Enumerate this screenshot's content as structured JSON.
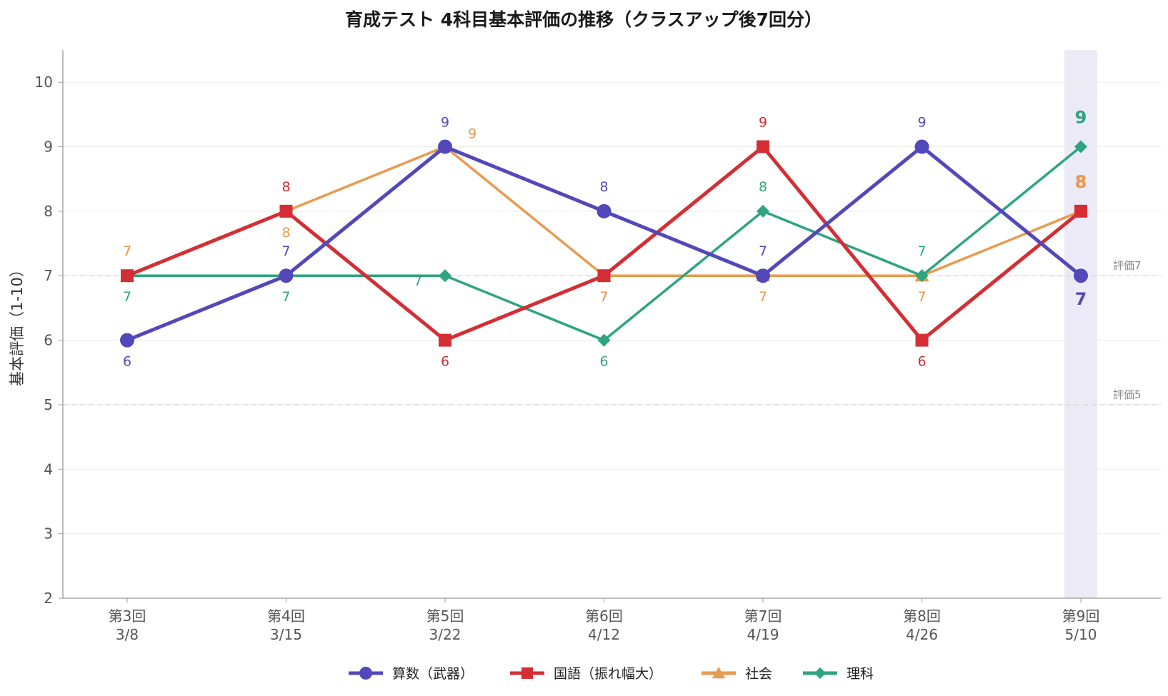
{
  "chart_data": {
    "type": "line",
    "title": "育成テスト 4科目基本評価の推移（クラスアップ後7回分）",
    "xlabel": "",
    "ylabel": "基本評価（1-10）",
    "ylim": [
      2,
      10.5
    ],
    "yticks": [
      "2",
      "3",
      "4",
      "5",
      "6",
      "7",
      "8",
      "9",
      "10"
    ],
    "categories": [
      {
        "round": "第3回",
        "date": "3/8"
      },
      {
        "round": "第4回",
        "date": "3/15"
      },
      {
        "round": "第5回",
        "date": "3/22"
      },
      {
        "round": "第6回",
        "date": "4/12"
      },
      {
        "round": "第7回",
        "date": "4/19"
      },
      {
        "round": "第8回",
        "date": "4/26"
      },
      {
        "round": "第9回",
        "date": "5/10"
      }
    ],
    "highlight_category_index": 6,
    "reference_lines": [
      {
        "value": 7,
        "label": "評価7"
      },
      {
        "value": 5,
        "label": "評価5"
      }
    ],
    "series": [
      {
        "name": "算数（武器）",
        "color": "#5348b9",
        "marker": "circle",
        "values": [
          6,
          7,
          9,
          8,
          7,
          9,
          7
        ],
        "label_pos": [
          "below",
          "above",
          "above",
          "above",
          "above",
          "above",
          "below"
        ]
      },
      {
        "name": "国語（振れ幅大）",
        "color": "#d42e34",
        "marker": "square",
        "values": [
          7,
          8,
          6,
          7,
          9,
          6,
          8
        ],
        "label_pos": [
          "above",
          "above",
          "below",
          "below",
          "above",
          "below",
          "above"
        ]
      },
      {
        "name": "社会",
        "color": "#e89a4f",
        "marker": "triangle",
        "values": [
          7,
          8,
          9,
          7,
          7,
          7,
          8
        ],
        "label_pos": [
          "above",
          "below",
          "above-right",
          "below",
          "below",
          "below",
          "above"
        ]
      },
      {
        "name": "理科",
        "color": "#2ea480",
        "marker": "diamond",
        "values": [
          7,
          7,
          7,
          6,
          8,
          7,
          9
        ],
        "label_pos": [
          "below",
          "below",
          "below-left",
          "below",
          "above",
          "above",
          "above"
        ]
      }
    ],
    "grid": true,
    "legend": "bottom-center"
  }
}
